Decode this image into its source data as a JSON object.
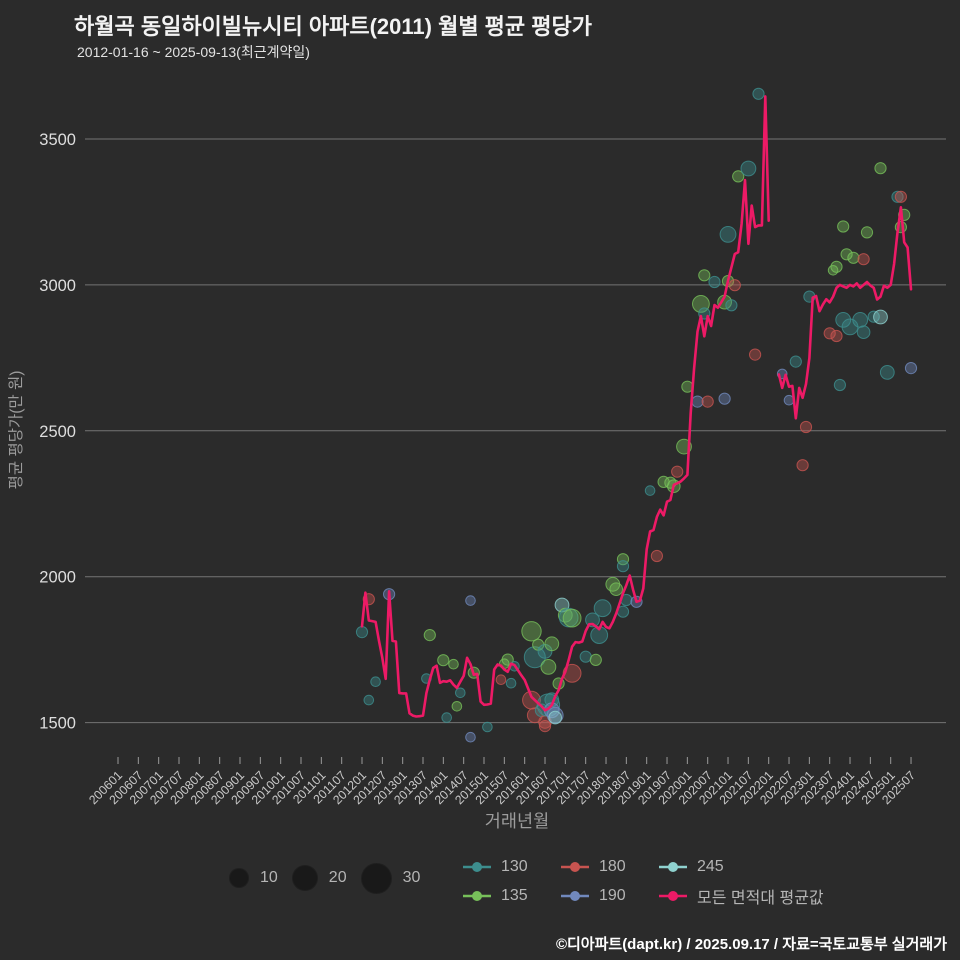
{
  "header": {
    "title": "하월곡 동일하이빌뉴시티 아파트(2011) 월별 평균 평당가",
    "subtitle": "2012-01-16 ~ 2025-09-13(최근계약일)"
  },
  "footer": {
    "credit": "©디아파트(dapt.kr) / 2025.09.17 / 자료=국토교통부 실거래가"
  },
  "legend": {
    "size_items": [
      {
        "label": "10"
      },
      {
        "label": "20"
      },
      {
        "label": "30"
      }
    ],
    "series": [
      {
        "key": "130",
        "label": "130",
        "color": "#3d8e8e"
      },
      {
        "key": "180",
        "label": "180",
        "color": "#c75450"
      },
      {
        "key": "245",
        "label": "245",
        "color": "#8fd2cf"
      },
      {
        "key": "135",
        "label": "135",
        "color": "#77c05a"
      },
      {
        "key": "190",
        "label": "190",
        "color": "#7189bd"
      },
      {
        "key": "line",
        "label": "모든 면적대 평균값",
        "color": "#ed1a66"
      }
    ]
  },
  "chart_data": {
    "type": "scatter",
    "subtype": "bubble-scatter-with-line",
    "title": "하월곡 동일하이빌뉴시티 아파트(2011) 월별 평균 평당가",
    "xlabel": "거래년월",
    "ylabel": "평균 평당가(만 원)",
    "grid": true,
    "background": "#2b2b2b",
    "gridline_color": "#747474",
    "axis_text_color": "#c9c9c9",
    "axis_title_color": "#9c9c9c",
    "y_ticks": [
      1500,
      2000,
      2500,
      3000,
      3500
    ],
    "ylim": [
      1400,
      3720
    ],
    "x_ticks": [
      "200601",
      "200607",
      "200701",
      "200707",
      "200801",
      "200807",
      "200901",
      "200907",
      "201001",
      "201007",
      "201101",
      "201107",
      "201201",
      "201207",
      "201301",
      "201307",
      "201401",
      "201407",
      "201501",
      "201507",
      "201601",
      "201607",
      "201701",
      "201707",
      "201801",
      "201807",
      "201901",
      "201907",
      "202001",
      "202007",
      "202101",
      "202107",
      "202201",
      "202207",
      "202301",
      "202307",
      "202401",
      "202407",
      "202501",
      "202507"
    ],
    "series_colors": {
      "130": "#3d8e8e",
      "135": "#77c05a",
      "180": "#c75450",
      "190": "#7189bd",
      "245": "#8fd2cf"
    },
    "line_series": {
      "name": "모든 면적대 평균값",
      "color": "#ed1a66",
      "start_ym": "201201",
      "monthly_values": [
        1830,
        1945,
        1850,
        1848,
        1845,
        1780,
        1722,
        1650,
        1950,
        1780,
        1778,
        1601,
        1600,
        1600,
        1532,
        1524,
        1521,
        1522,
        1524,
        1601,
        1647,
        1687,
        1695,
        1636,
        1642,
        1640,
        1645,
        1630,
        1619,
        1640,
        1660,
        1722,
        1700,
        1664,
        1667,
        1572,
        1561,
        1562,
        1565,
        1682,
        1699,
        1695,
        1682,
        1674,
        1702,
        1697,
        1680,
        1662,
        1646,
        1617,
        1588,
        1577,
        1566,
        1556,
        1542,
        1548,
        1560,
        1590,
        1611,
        1650,
        1674,
        1715,
        1760,
        1776,
        1774,
        1778,
        1814,
        1837,
        1838,
        1830,
        1820,
        1845,
        1828,
        1823,
        1845,
        1874,
        1908,
        1943,
        1971,
        2004,
        1955,
        1914,
        1918,
        1960,
        2094,
        2155,
        2160,
        2205,
        2230,
        2210,
        2257,
        2263,
        2315,
        2320,
        2326,
        2337,
        2349,
        2561,
        2714,
        2840,
        2893,
        2824,
        2893,
        2859,
        2931,
        2922,
        2940,
        2960,
        3014,
        3060,
        3106,
        3112,
        3209,
        3359,
        3141,
        3272,
        3198,
        3204,
        3204,
        3646,
        3220,
        null,
        null,
        2693,
        2647,
        2692,
        2651,
        2654,
        2543,
        2647,
        2613,
        2660,
        2750,
        2956,
        2962,
        2910,
        2933,
        2951,
        2940,
        2960,
        2990,
        3000,
        2995,
        2990,
        3000,
        2995,
        3005,
        2990,
        3000,
        3010,
        2998,
        2990,
        2950,
        2960,
        2997,
        2990,
        3000,
        3072,
        3180,
        3266,
        3146,
        3128,
        2985
      ]
    },
    "bubbles": [
      [
        "201201",
        1810,
        "130",
        4
      ],
      [
        "201203",
        1923,
        "180",
        4
      ],
      [
        "201203",
        1577,
        "130",
        3
      ],
      [
        "201205",
        1640,
        "130",
        3
      ],
      [
        "201209",
        1940,
        "190",
        4
      ],
      [
        "201308",
        1651,
        "130",
        3
      ],
      [
        "201309",
        1800,
        "135",
        4
      ],
      [
        "201401",
        1714,
        "135",
        4
      ],
      [
        "201402",
        1517,
        "130",
        3
      ],
      [
        "201404",
        1700,
        "135",
        3
      ],
      [
        "201405",
        1556,
        "135",
        3
      ],
      [
        "201406",
        1602,
        "130",
        3
      ],
      [
        "201409",
        1918,
        "190",
        3
      ],
      [
        "201409",
        1450,
        "190",
        3
      ],
      [
        "201410",
        1671,
        "135",
        4
      ],
      [
        "201502",
        1485,
        "130",
        3
      ],
      [
        "201506",
        1647,
        "180",
        3
      ],
      [
        "201507",
        1702,
        "135",
        3
      ],
      [
        "201508",
        1716,
        "135",
        4
      ],
      [
        "201509",
        1635,
        "130",
        3
      ],
      [
        "201510",
        1693,
        "130",
        3
      ],
      [
        "201603",
        1813,
        "135",
        12
      ],
      [
        "201603",
        1577,
        "180",
        10
      ],
      [
        "201604",
        1724,
        "130",
        14
      ],
      [
        "201604",
        1525,
        "180",
        7
      ],
      [
        "201605",
        1767,
        "135",
        4
      ],
      [
        "201606",
        1542,
        "130",
        5
      ],
      [
        "201607",
        1744,
        "130",
        6
      ],
      [
        "201607",
        1502,
        "180",
        5
      ],
      [
        "201607",
        1488,
        "180",
        4
      ],
      [
        "201608",
        1691,
        "135",
        7
      ],
      [
        "201608",
        1560,
        "130",
        16
      ],
      [
        "201609",
        1578,
        "130",
        6
      ],
      [
        "201609",
        1770,
        "135",
        6
      ],
      [
        "201609",
        1542,
        "190",
        7
      ],
      [
        "201610",
        1525,
        "190",
        8
      ],
      [
        "201610",
        1517,
        "245",
        5
      ],
      [
        "201611",
        1634,
        "135",
        4
      ],
      [
        "201612",
        1903,
        "245",
        6
      ],
      [
        "201701",
        1868,
        "135",
        6
      ],
      [
        "201702",
        1860,
        "130",
        11
      ],
      [
        "201703",
        1858,
        "135",
        10
      ],
      [
        "201703",
        1669,
        "180",
        10
      ],
      [
        "201707",
        1726,
        "130",
        4
      ],
      [
        "201709",
        1852,
        "130",
        6
      ],
      [
        "201710",
        1715,
        "135",
        4
      ],
      [
        "201711",
        1800,
        "130",
        9
      ],
      [
        "201712",
        1892,
        "130",
        9
      ],
      [
        "201803",
        1974,
        "135",
        6
      ],
      [
        "201804",
        1957,
        "135",
        5
      ],
      [
        "201806",
        1880,
        "130",
        4
      ],
      [
        "201806",
        2060,
        "135",
        4
      ],
      [
        "201806",
        2036,
        "130",
        4
      ],
      [
        "201807",
        1920,
        "130",
        4
      ],
      [
        "201810",
        1914,
        "190",
        4
      ],
      [
        "201902",
        2295,
        "130",
        3
      ],
      [
        "201904",
        2071,
        "180",
        4
      ],
      [
        "201906",
        2325,
        "135",
        4
      ],
      [
        "201908",
        2322,
        "135",
        4
      ],
      [
        "201909",
        2310,
        "135",
        5
      ],
      [
        "201910",
        2360,
        "180",
        4
      ],
      [
        "201912",
        2446,
        "135",
        7
      ],
      [
        "202001",
        2651,
        "135",
        4
      ],
      [
        "202004",
        2600,
        "190",
        4
      ],
      [
        "202005",
        2935,
        "135",
        9
      ],
      [
        "202006",
        3033,
        "135",
        4
      ],
      [
        "202006",
        2902,
        "130",
        4
      ],
      [
        "202007",
        2600,
        "180",
        4
      ],
      [
        "202009",
        3010,
        "130",
        4
      ],
      [
        "202012",
        2610,
        "190",
        4
      ],
      [
        "202012",
        2941,
        "135",
        6
      ],
      [
        "202101",
        3173,
        "130",
        8
      ],
      [
        "202101",
        3013,
        "135",
        4
      ],
      [
        "202102",
        2930,
        "130",
        4
      ],
      [
        "202103",
        2999,
        "180",
        4
      ],
      [
        "202104",
        3372,
        "135",
        4
      ],
      [
        "202107",
        3399,
        "130",
        7
      ],
      [
        "202109",
        2761,
        "180",
        4
      ],
      [
        "202110",
        3655,
        "130",
        4
      ],
      [
        "202205",
        2695,
        "190",
        3
      ],
      [
        "202207",
        2605,
        "190",
        3
      ],
      [
        "202209",
        2737,
        "130",
        4
      ],
      [
        "202211",
        2382,
        "180",
        4
      ],
      [
        "202212",
        2513,
        "180",
        4
      ],
      [
        "202301",
        2960,
        "130",
        4
      ],
      [
        "202307",
        2834,
        "180",
        4
      ],
      [
        "202308",
        3050,
        "135",
        3
      ],
      [
        "202309",
        2825,
        "180",
        4
      ],
      [
        "202309",
        3062,
        "135",
        4
      ],
      [
        "202310",
        2657,
        "130",
        4
      ],
      [
        "202311",
        2880,
        "130",
        7
      ],
      [
        "202311",
        3200,
        "135",
        4
      ],
      [
        "202312",
        3105,
        "135",
        4
      ],
      [
        "202401",
        2856,
        "130",
        8
      ],
      [
        "202402",
        3093,
        "135",
        4
      ],
      [
        "202404",
        2880,
        "130",
        7
      ],
      [
        "202405",
        2838,
        "130",
        5
      ],
      [
        "202405",
        3088,
        "180",
        4
      ],
      [
        "202406",
        3180,
        "135",
        4
      ],
      [
        "202408",
        2891,
        "130",
        4
      ],
      [
        "202410",
        2890,
        "245",
        6
      ],
      [
        "202410",
        3400,
        "135",
        4
      ],
      [
        "202412",
        2700,
        "130",
        6
      ],
      [
        "202503",
        3302,
        "130",
        4
      ],
      [
        "202504",
        3302,
        "180",
        4
      ],
      [
        "202504",
        3198,
        "135",
        4
      ],
      [
        "202505",
        3240,
        "135",
        4
      ],
      [
        "202507",
        2715,
        "190",
        4
      ]
    ],
    "size_legend": {
      "values": [
        10,
        20,
        30
      ]
    }
  }
}
